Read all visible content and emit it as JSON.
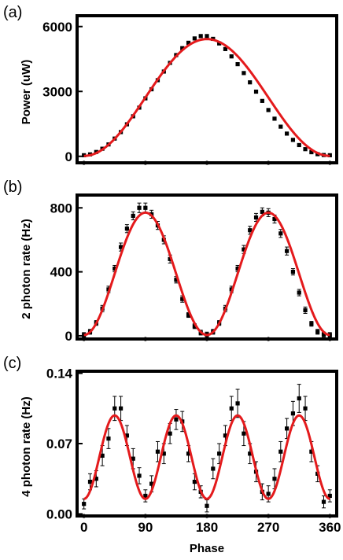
{
  "colors": {
    "fit": "#e41a1c",
    "data": "#000000",
    "frame": "#000000"
  },
  "shared_xlabel": "Phase",
  "chart_data": [
    {
      "type": "scatter",
      "panel_label": "(a)",
      "title": "",
      "xlabel": "",
      "ylabel": "Power (uW)",
      "xlim": [
        -10,
        370
      ],
      "ylim": [
        -300,
        6500
      ],
      "xticks": [
        0,
        90,
        180,
        270,
        360
      ],
      "xtick_labels": [],
      "yticks": [
        0,
        3000,
        6000
      ],
      "ytick_labels": [
        "0",
        "3000",
        "6000"
      ],
      "grid": false,
      "legend": "none",
      "series": [
        {
          "kind": "points",
          "x": [
            0,
            9,
            18,
            27,
            36,
            45,
            54,
            63,
            72,
            81,
            90,
            99,
            108,
            117,
            126,
            135,
            144,
            153,
            162,
            171,
            180,
            189,
            198,
            207,
            216,
            225,
            234,
            243,
            252,
            261,
            270,
            279,
            288,
            297,
            306,
            315,
            324,
            333,
            342,
            351,
            360
          ],
          "y": [
            50,
            90,
            200,
            350,
            550,
            820,
            1120,
            1480,
            1850,
            2250,
            2680,
            3100,
            3520,
            3920,
            4320,
            4680,
            5000,
            5250,
            5450,
            5560,
            5560,
            5430,
            5220,
            4960,
            4620,
            4260,
            3850,
            3420,
            2990,
            2560,
            2140,
            1740,
            1370,
            1050,
            760,
            520,
            330,
            190,
            100,
            60,
            50
          ]
        },
        {
          "kind": "fit",
          "model": "offset + A * (1 - cos(x)) / 2",
          "A": 5400,
          "offset": 20,
          "period_deg": 360
        }
      ]
    },
    {
      "type": "scatter",
      "panel_label": "(b)",
      "title": "",
      "xlabel": "",
      "ylabel": "2 photon rate (Hz)",
      "xlim": [
        -10,
        370
      ],
      "ylim": [
        -20,
        880
      ],
      "xticks": [
        0,
        90,
        180,
        270,
        360
      ],
      "xtick_labels": [],
      "yticks": [
        0,
        400,
        800
      ],
      "ytick_labels": [
        "0",
        "400",
        "800"
      ],
      "grid": false,
      "legend": "none",
      "series": [
        {
          "kind": "points_with_errors",
          "x": [
            0,
            9,
            18,
            27,
            36,
            45,
            54,
            63,
            72,
            81,
            90,
            99,
            108,
            117,
            126,
            135,
            144,
            153,
            162,
            171,
            180,
            189,
            198,
            207,
            216,
            225,
            234,
            243,
            252,
            261,
            270,
            279,
            288,
            297,
            306,
            315,
            324,
            333,
            342,
            351,
            360
          ],
          "y": [
            5,
            25,
            80,
            170,
            290,
            420,
            555,
            670,
            750,
            800,
            800,
            760,
            690,
            600,
            480,
            350,
            230,
            130,
            60,
            20,
            8,
            25,
            80,
            170,
            290,
            420,
            540,
            660,
            740,
            775,
            770,
            730,
            640,
            530,
            400,
            270,
            160,
            75,
            25,
            8,
            5
          ],
          "yerr": [
            15,
            15,
            15,
            20,
            20,
            20,
            25,
            25,
            25,
            30,
            30,
            25,
            25,
            25,
            25,
            20,
            20,
            15,
            15,
            15,
            15,
            15,
            15,
            20,
            20,
            20,
            25,
            25,
            25,
            25,
            25,
            25,
            25,
            25,
            20,
            20,
            20,
            15,
            15,
            15,
            15
          ]
        },
        {
          "kind": "fit",
          "model": "offset + A * (1 - cos(2x)) / 2",
          "A": 765,
          "offset": 5,
          "period_deg": 180
        }
      ]
    },
    {
      "type": "scatter",
      "panel_label": "(c)",
      "title": "",
      "xlabel": "Phase",
      "ylabel": "4 photon rate (Hz)",
      "xlim": [
        -10,
        370
      ],
      "ylim": [
        -0.002,
        0.142
      ],
      "xticks": [
        0,
        90,
        180,
        270,
        360
      ],
      "xtick_labels": [
        "0",
        "90",
        "180",
        "270",
        "360"
      ],
      "yticks": [
        0.0,
        0.07,
        0.14
      ],
      "ytick_labels": [
        "0.00",
        "0.07",
        "0.14"
      ],
      "grid": false,
      "legend": "none",
      "series": [
        {
          "kind": "points_with_errors",
          "x": [
            0,
            9,
            18,
            27,
            36,
            45,
            54,
            63,
            72,
            81,
            90,
            99,
            108,
            117,
            126,
            135,
            144,
            153,
            162,
            171,
            180,
            189,
            198,
            207,
            216,
            225,
            234,
            243,
            252,
            261,
            270,
            279,
            288,
            297,
            306,
            315,
            324,
            333,
            342,
            351,
            360
          ],
          "y": [
            0.01,
            0.032,
            0.035,
            0.058,
            0.075,
            0.105,
            0.105,
            0.078,
            0.055,
            0.038,
            0.018,
            0.03,
            0.062,
            0.06,
            0.08,
            0.094,
            0.092,
            0.06,
            0.032,
            0.022,
            0.008,
            0.045,
            0.06,
            0.078,
            0.105,
            0.11,
            0.08,
            0.06,
            0.042,
            0.022,
            0.02,
            0.035,
            0.062,
            0.085,
            0.1,
            0.115,
            0.105,
            0.062,
            0.04,
            0.012,
            0.018
          ],
          "yerr": [
            0.005,
            0.008,
            0.008,
            0.01,
            0.01,
            0.012,
            0.012,
            0.01,
            0.01,
            0.008,
            0.006,
            0.008,
            0.01,
            0.01,
            0.01,
            0.01,
            0.01,
            0.008,
            0.008,
            0.006,
            0.006,
            0.01,
            0.01,
            0.01,
            0.012,
            0.014,
            0.012,
            0.01,
            0.01,
            0.008,
            0.008,
            0.01,
            0.01,
            0.01,
            0.012,
            0.014,
            0.012,
            0.01,
            0.008,
            0.006,
            0.006
          ]
        },
        {
          "kind": "fit",
          "model": "offset + A * (1 - cos(4x)) / 2",
          "A": 0.083,
          "offset": 0.015,
          "period_deg": 90
        }
      ]
    }
  ]
}
